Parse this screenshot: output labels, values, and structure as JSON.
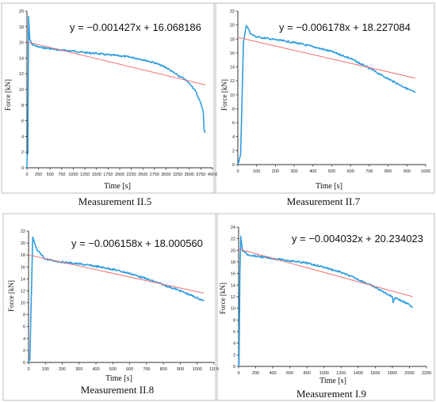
{
  "colors": {
    "series": "#2f9ee0",
    "trend": "#f07070",
    "axis": "#333333",
    "box": "#bfbfbf"
  },
  "chart_data": [
    {
      "type": "line",
      "title": "Measurement II.5",
      "xlabel": "Time [s]",
      "ylabel": "Force [kN]",
      "equation": "y = −0.001427x + 16.068186",
      "xlim": [
        0,
        4000
      ],
      "ylim": [
        0,
        20
      ],
      "xticks": [
        0,
        250,
        500,
        750,
        1000,
        1250,
        1500,
        1750,
        2000,
        2250,
        2500,
        2750,
        3000,
        3250,
        3500,
        3750,
        4000
      ],
      "yticks": [
        0,
        2,
        4,
        6,
        8,
        10,
        12,
        14,
        16,
        18,
        20
      ],
      "series": [
        {
          "values": [
            [
              0,
              0
            ],
            [
              5,
              1.6
            ],
            [
              20,
              1.8
            ],
            [
              35,
              19.3
            ],
            [
              60,
              16.4
            ],
            [
              100,
              15.8
            ],
            [
              250,
              15.4
            ],
            [
              500,
              15.2
            ],
            [
              750,
              15.0
            ],
            [
              1000,
              14.9
            ],
            [
              1250,
              14.7
            ],
            [
              1500,
              14.6
            ],
            [
              1750,
              14.4
            ],
            [
              2000,
              14.3
            ],
            [
              2250,
              14.1
            ],
            [
              2500,
              13.8
            ],
            [
              2750,
              13.4
            ],
            [
              3000,
              12.8
            ],
            [
              3250,
              11.8
            ],
            [
              3400,
              11.3
            ],
            [
              3550,
              10.5
            ],
            [
              3650,
              9.6
            ],
            [
              3750,
              8.2
            ],
            [
              3800,
              7.2
            ],
            [
              3820,
              4.8
            ],
            [
              3850,
              4.5
            ]
          ]
        },
        {
          "values": [
            [
              0,
              16.068186
            ],
            [
              3850,
              10.574236
            ]
          ]
        }
      ]
    },
    {
      "type": "line",
      "title": "Measurement II.7",
      "xlabel": "Time [s]",
      "ylabel": "Force [kN]",
      "equation": "y = −0.006178x + 18.227084",
      "xlim": [
        0,
        1000
      ],
      "ylim": [
        0,
        22
      ],
      "xticks": [
        0,
        100,
        200,
        300,
        400,
        500,
        600,
        700,
        800,
        900,
        1000
      ],
      "yticks": [
        0,
        2,
        4,
        6,
        8,
        10,
        12,
        14,
        16,
        18,
        20,
        22
      ],
      "series": [
        {
          "values": [
            [
              0,
              0
            ],
            [
              5,
              0.4
            ],
            [
              15,
              1.5
            ],
            [
              30,
              17.5
            ],
            [
              45,
              20.0
            ],
            [
              70,
              18.7
            ],
            [
              100,
              18.3
            ],
            [
              200,
              17.9
            ],
            [
              300,
              17.5
            ],
            [
              400,
              16.9
            ],
            [
              500,
              16.2
            ],
            [
              600,
              15.2
            ],
            [
              700,
              13.8
            ],
            [
              800,
              12.3
            ],
            [
              900,
              10.9
            ],
            [
              945,
              10.3
            ]
          ]
        },
        {
          "values": [
            [
              0,
              18.227084
            ],
            [
              945,
              12.388874
            ]
          ]
        }
      ]
    },
    {
      "type": "line",
      "title": "Measurement II.8",
      "xlabel": "Time [s]",
      "ylabel": "Force [kN]",
      "equation": "y = −0.006158x + 18.000560",
      "xlim": [
        0,
        1100
      ],
      "ylim": [
        0,
        22
      ],
      "xticks": [
        0,
        100,
        200,
        300,
        400,
        500,
        600,
        700,
        800,
        900,
        1000,
        1100
      ],
      "yticks": [
        0,
        2,
        4,
        6,
        8,
        10,
        12,
        14,
        16,
        18,
        20,
        22
      ],
      "series": [
        {
          "values": [
            [
              0,
              0
            ],
            [
              8,
              0.5
            ],
            [
              15,
              9.5
            ],
            [
              25,
              21.0
            ],
            [
              50,
              18.8
            ],
            [
              100,
              17.3
            ],
            [
              200,
              16.8
            ],
            [
              300,
              16.5
            ],
            [
              400,
              16.1
            ],
            [
              500,
              15.6
            ],
            [
              600,
              14.9
            ],
            [
              700,
              14.0
            ],
            [
              800,
              13.0
            ],
            [
              900,
              12.0
            ],
            [
              1000,
              10.8
            ],
            [
              1040,
              10.3
            ]
          ]
        },
        {
          "values": [
            [
              0,
              18.00056
            ],
            [
              1040,
              11.59624
            ]
          ]
        }
      ]
    },
    {
      "type": "line",
      "title": "Measurement I.9",
      "xlabel": "Time [s]",
      "ylabel": "Force [kN]",
      "equation": "y = −0.004032x + 20.234023",
      "xlim": [
        0,
        2200
      ],
      "ylim": [
        0,
        24
      ],
      "xticks": [
        0,
        200,
        400,
        600,
        800,
        1000,
        1200,
        1400,
        1600,
        1800,
        2000,
        2200
      ],
      "yticks": [
        0,
        2,
        4,
        6,
        8,
        10,
        12,
        14,
        16,
        18,
        20,
        22,
        24
      ],
      "series": [
        {
          "values": [
            [
              0,
              0
            ],
            [
              5,
              0.5
            ],
            [
              15,
              16.0
            ],
            [
              25,
              22.4
            ],
            [
              45,
              20.0
            ],
            [
              100,
              19.3
            ],
            [
              200,
              19.0
            ],
            [
              400,
              18.6
            ],
            [
              600,
              18.2
            ],
            [
              800,
              17.8
            ],
            [
              1000,
              17.1
            ],
            [
              1200,
              16.2
            ],
            [
              1400,
              15.0
            ],
            [
              1600,
              13.6
            ],
            [
              1800,
              12.0
            ],
            [
              1810,
              11.0
            ],
            [
              1830,
              11.9
            ],
            [
              2000,
              10.6
            ],
            [
              2040,
              10.2
            ]
          ]
        },
        {
          "values": [
            [
              0,
              20.234023
            ],
            [
              2040,
              12.008743
            ]
          ]
        }
      ]
    }
  ]
}
